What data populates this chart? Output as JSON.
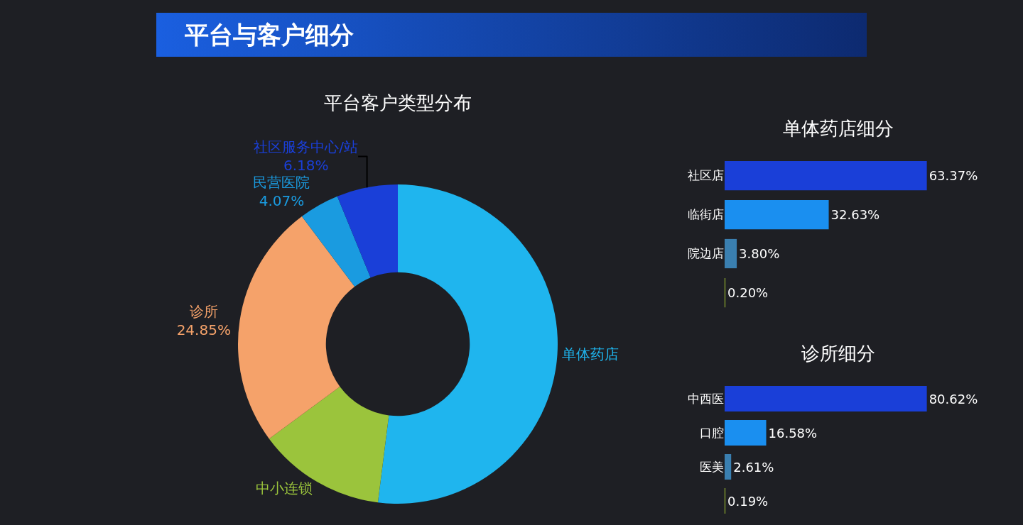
{
  "chart_data": [
    {
      "type": "donut",
      "title": "平台与客户细分",
      "subtitle": "平台客户类型分布",
      "categories": [
        "单体药店",
        "中小连锁",
        "诊所",
        "民营医院",
        "社区服务中心/站"
      ],
      "values": [
        51.99,
        12.91,
        24.85,
        4.07,
        6.18
      ],
      "value_labels": [
        null,
        null,
        "24.85%",
        "4.07%",
        "6.18%"
      ],
      "colors": [
        "#1fb5ee",
        "#9bc43c",
        "#f5a26a",
        "#1a9be0",
        "#1a3fd8"
      ],
      "legend": false
    },
    {
      "type": "bar",
      "orientation": "horizontal",
      "title": "单体药店细分",
      "categories": [
        "社区店",
        "临街店",
        "院边店",
        null
      ],
      "values": [
        63.37,
        32.63,
        3.8,
        0.2
      ],
      "value_labels": [
        "63.37%",
        "32.63%",
        "3.80%",
        "0.20%"
      ],
      "colors": [
        "#1a3fd8",
        "#1a8ff0",
        "#3a7fb0",
        "#a8cc30"
      ],
      "grid": false,
      "legend": false,
      "tick_labels": "y"
    },
    {
      "type": "bar",
      "orientation": "horizontal",
      "title": "诊所细分",
      "categories": [
        "中西医",
        "口腔",
        "医美",
        null
      ],
      "values": [
        80.62,
        16.58,
        2.61,
        0.19
      ],
      "value_labels": [
        "80.62%",
        "16.58%",
        "2.61%",
        "0.19%"
      ],
      "colors": [
        "#1a3fd8",
        "#1a8ff0",
        "#3a7fb0",
        "#a8cc30"
      ],
      "grid": false,
      "legend": false,
      "tick_labels": "y"
    }
  ]
}
